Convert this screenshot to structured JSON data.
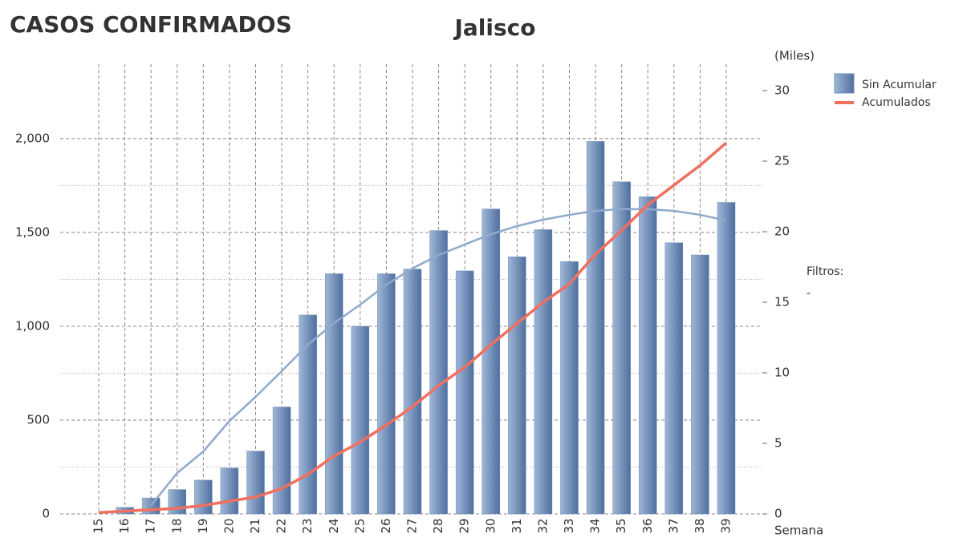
{
  "chart_data": {
    "type": "bar_line",
    "title": "CASOS CONFIRMADOS",
    "subtitle": "Jalisco",
    "y2_label": "(Miles)",
    "x_label": "Semana",
    "filters_label": "Filtros:",
    "filters_value": "-",
    "categories": [
      "15",
      "16",
      "17",
      "18",
      "19",
      "20",
      "21",
      "22",
      "23",
      "24",
      "25",
      "26",
      "27",
      "28",
      "29",
      "30",
      "31",
      "32",
      "33",
      "34",
      "35",
      "36",
      "37",
      "38",
      "39"
    ],
    "series": [
      {
        "name": "Sin Acumular",
        "color": "#6b8cba",
        "values": [
          0,
          35,
          85,
          130,
          180,
          245,
          335,
          570,
          1060,
          1280,
          1000,
          1280,
          1305,
          1510,
          1295,
          1625,
          1370,
          1515,
          1345,
          1985,
          1770,
          1690,
          1445,
          1380,
          1660
        ]
      },
      {
        "name": "Acumulados",
        "color": "#f07060",
        "axis": "y2",
        "values": [
          0.1,
          0.2,
          0.3,
          0.4,
          0.6,
          0.9,
          1.2,
          1.8,
          2.8,
          4.1,
          5.1,
          6.3,
          7.6,
          9.1,
          10.4,
          12.0,
          13.5,
          15.0,
          16.3,
          18.4,
          20.1,
          21.9,
          23.3,
          24.7,
          26.3
        ]
      }
    ],
    "trendline": {
      "color": "#8fa9cc",
      "values": [
        null,
        null,
        45,
        218,
        333,
        496,
        624,
        761,
        902,
        1017,
        1115,
        1222,
        1308,
        1380,
        1436,
        1491,
        1534,
        1568,
        1594,
        1615,
        1624,
        1624,
        1615,
        1594,
        1564
      ]
    },
    "ylim": [
      0,
      2256
    ],
    "yticks": [
      0,
      500,
      {
        "value": 1000,
        "label": "1,000"
      },
      {
        "value": 1500,
        "label": "1,500"
      },
      {
        "value": 2000,
        "label": "2,000"
      }
    ],
    "y2lim": [
      0,
      30
    ],
    "y2ticks": [
      0,
      5,
      10,
      15,
      20,
      25,
      30
    ],
    "grid": true,
    "legend": "top-right"
  }
}
